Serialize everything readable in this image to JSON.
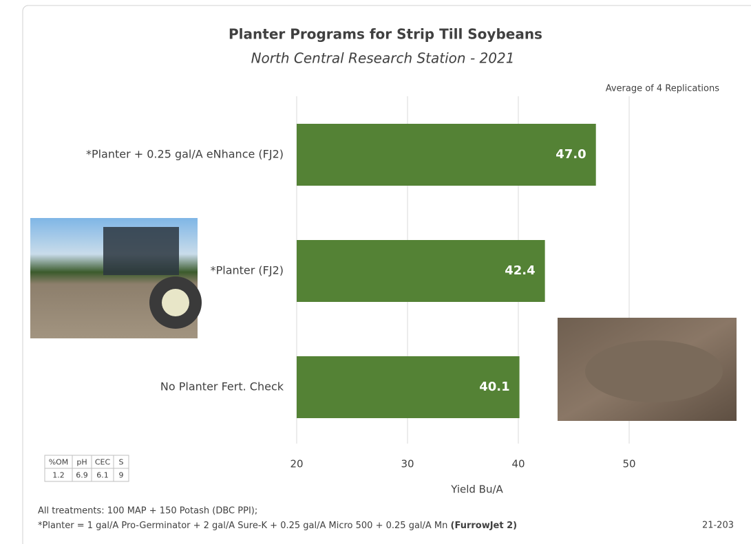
{
  "chart_data": {
    "type": "hbar",
    "title": "Planter Programs for Strip Till Soybeans",
    "subtitle": "North Central Research Station - 2021",
    "annotation": "Average of 4 Replications",
    "x_label": "Yield Bu/A",
    "categories": [
      "*Planter + 0.25 gal/A eNhance (FJ2)",
      "*Planter (FJ2)",
      "No Planter Fert. Check"
    ],
    "values": [
      47.0,
      42.4,
      40.1
    ],
    "value_labels": [
      "47.0",
      "42.4",
      "40.1"
    ],
    "color": "#548235",
    "xlim": [
      20,
      60
    ],
    "xticks": [
      20,
      30,
      40,
      50
    ],
    "grid": true
  },
  "soil_table": {
    "header": [
      "%OM",
      "pH",
      "CEC",
      "S"
    ],
    "rows": [
      [
        1.2,
        6.9,
        6.1,
        9
      ]
    ]
  },
  "footer": {
    "line_1": "All treatments: 100 MAP + 150 Potash (DBC PPI);",
    "line_2": "*Planter = 1 gal/A Pro-Germinator + 2 gal/A Sure-K + 0.25 gal/A Micro 500 + 0.25 gal/A Mn ",
    "line_2_bold": "(FurrowJet 2)",
    "code": "21-203"
  }
}
